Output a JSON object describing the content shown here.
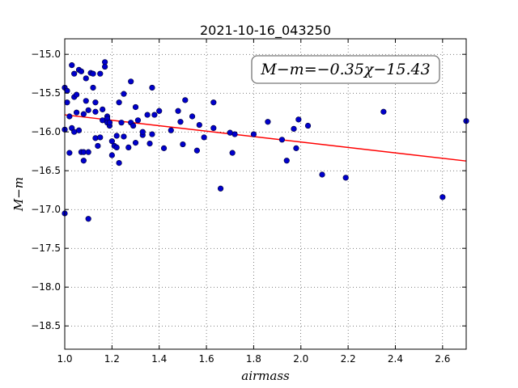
{
  "chart_data": {
    "type": "scatter",
    "title": "2021-10-16_043250",
    "xlabel": "airmass",
    "ylabel": "M−m",
    "xlim": [
      1.0,
      2.7
    ],
    "ylim": [
      -18.8,
      -14.8
    ],
    "x_ticks": [
      1.0,
      1.2,
      1.4,
      1.6,
      1.8,
      2.0,
      2.2,
      2.4,
      2.6
    ],
    "x_tick_labels": [
      "1.0",
      "1.2",
      "1.4",
      "1.6",
      "1.8",
      "2.0",
      "2.2",
      "2.4",
      "2.6"
    ],
    "y_ticks": [
      -15.0,
      -15.5,
      -16.0,
      -16.5,
      -17.0,
      -17.5,
      -18.0,
      -18.5
    ],
    "y_tick_labels": [
      "−15.0",
      "−15.5",
      "−16.0",
      "−16.5",
      "−17.0",
      "−17.5",
      "−18.0",
      "−18.5"
    ],
    "grid": true,
    "annotation": "M−m=−0.35χ−15.43",
    "fit": {
      "slope": -0.35,
      "intercept": -15.43,
      "color": "#ff0000"
    },
    "point_color": "#0000cc",
    "points": [
      [
        1.0,
        -15.43
      ],
      [
        1.0,
        -15.97
      ],
      [
        1.0,
        -17.05
      ],
      [
        1.01,
        -15.47
      ],
      [
        1.01,
        -15.62
      ],
      [
        1.02,
        -15.8
      ],
      [
        1.02,
        -16.27
      ],
      [
        1.03,
        -15.14
      ],
      [
        1.03,
        -15.95
      ],
      [
        1.04,
        -15.25
      ],
      [
        1.04,
        -15.55
      ],
      [
        1.04,
        -16.0
      ],
      [
        1.05,
        -15.52
      ],
      [
        1.05,
        -15.75
      ],
      [
        1.06,
        -15.2
      ],
      [
        1.06,
        -15.98
      ],
      [
        1.07,
        -15.22
      ],
      [
        1.07,
        -16.26
      ],
      [
        1.08,
        -15.77
      ],
      [
        1.08,
        -16.26
      ],
      [
        1.08,
        -16.37
      ],
      [
        1.09,
        -15.6
      ],
      [
        1.09,
        -15.31
      ],
      [
        1.1,
        -15.72
      ],
      [
        1.1,
        -16.26
      ],
      [
        1.1,
        -17.12
      ],
      [
        1.11,
        -15.24
      ],
      [
        1.12,
        -15.25
      ],
      [
        1.12,
        -15.43
      ],
      [
        1.13,
        -15.62
      ],
      [
        1.13,
        -15.74
      ],
      [
        1.13,
        -16.08
      ],
      [
        1.14,
        -16.18
      ],
      [
        1.15,
        -15.25
      ],
      [
        1.15,
        -16.07
      ],
      [
        1.16,
        -15.85
      ],
      [
        1.16,
        -15.71
      ],
      [
        1.17,
        -15.1
      ],
      [
        1.17,
        -15.16
      ],
      [
        1.18,
        -15.8
      ],
      [
        1.18,
        -15.83
      ],
      [
        1.18,
        -15.88
      ],
      [
        1.19,
        -15.92
      ],
      [
        1.19,
        -15.88
      ],
      [
        1.2,
        -16.12
      ],
      [
        1.2,
        -16.3
      ],
      [
        1.21,
        -16.18
      ],
      [
        1.22,
        -16.05
      ],
      [
        1.22,
        -16.2
      ],
      [
        1.23,
        -16.4
      ],
      [
        1.23,
        -15.62
      ],
      [
        1.24,
        -15.88
      ],
      [
        1.25,
        -16.06
      ],
      [
        1.25,
        -15.51
      ],
      [
        1.27,
        -16.2
      ],
      [
        1.28,
        -15.35
      ],
      [
        1.28,
        -15.88
      ],
      [
        1.29,
        -15.92
      ],
      [
        1.3,
        -16.14
      ],
      [
        1.3,
        -15.68
      ],
      [
        1.31,
        -15.85
      ],
      [
        1.33,
        -16.04
      ],
      [
        1.33,
        -16.0
      ],
      [
        1.35,
        -15.78
      ],
      [
        1.36,
        -16.15
      ],
      [
        1.37,
        -15.43
      ],
      [
        1.37,
        -16.03
      ],
      [
        1.38,
        -15.78
      ],
      [
        1.4,
        -15.73
      ],
      [
        1.42,
        -16.21
      ],
      [
        1.45,
        -15.98
      ],
      [
        1.48,
        -15.73
      ],
      [
        1.49,
        -15.87
      ],
      [
        1.5,
        -16.16
      ],
      [
        1.51,
        -15.59
      ],
      [
        1.54,
        -15.8
      ],
      [
        1.56,
        -16.24
      ],
      [
        1.57,
        -15.91
      ],
      [
        1.59,
        -16.07
      ],
      [
        1.63,
        -15.62
      ],
      [
        1.63,
        -15.95
      ],
      [
        1.66,
        -16.73
      ],
      [
        1.7,
        -16.01
      ],
      [
        1.71,
        -16.27
      ],
      [
        1.72,
        -16.03
      ],
      [
        1.8,
        -16.03
      ],
      [
        1.86,
        -15.87
      ],
      [
        1.92,
        -16.1
      ],
      [
        1.94,
        -16.37
      ],
      [
        1.97,
        -15.96
      ],
      [
        1.98,
        -16.21
      ],
      [
        1.99,
        -15.84
      ],
      [
        2.03,
        -15.92
      ],
      [
        2.09,
        -16.55
      ],
      [
        2.19,
        -16.59
      ],
      [
        2.35,
        -15.74
      ],
      [
        2.6,
        -16.84
      ],
      [
        2.7,
        -15.86
      ]
    ]
  }
}
